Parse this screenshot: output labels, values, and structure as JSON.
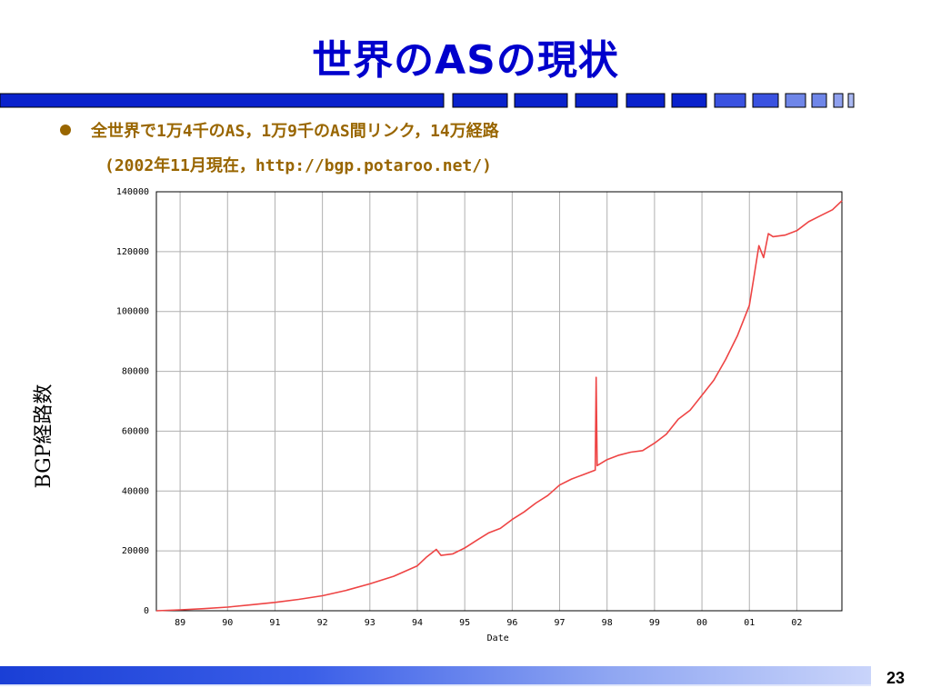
{
  "slide": {
    "title": "世界のASの現状",
    "bullet_line1": "全世界で1万4千のAS，1万9千のAS間リンク，14万経路",
    "bullet_line2": "(2002年11月現在，http://bgp.potaroo.net/)",
    "page_number": "23"
  },
  "colors": {
    "title": "#0000cc",
    "bullet_text": "#996600",
    "series": "#ee4444",
    "bar_dark": "#0a22cc",
    "bar_light": "#6f86e8"
  },
  "chart_data": {
    "type": "line",
    "xlabel": "Date",
    "ylabel": "BGP経路数",
    "x_ticks": [
      "89",
      "90",
      "91",
      "92",
      "93",
      "94",
      "95",
      "96",
      "97",
      "98",
      "99",
      "00",
      "01",
      "02"
    ],
    "y_ticks": [
      "0",
      "20000",
      "40000",
      "60000",
      "80000",
      "100000",
      "120000",
      "140000"
    ],
    "xlim": [
      1988.5,
      2002.95
    ],
    "ylim": [
      0,
      140000
    ],
    "grid": true,
    "series": [
      {
        "x": [
          1988.5,
          1989.0,
          1989.5,
          1990.0,
          1990.5,
          1991.0,
          1991.5,
          1992.0,
          1992.5,
          1993.0,
          1993.5,
          1994.0,
          1994.2,
          1994.4,
          1994.5,
          1994.75,
          1995.0,
          1995.25,
          1995.5,
          1995.75,
          1996.0,
          1996.25,
          1996.5,
          1996.75,
          1997.0,
          1997.25,
          1997.5,
          1997.75,
          1997.77,
          1997.79,
          1998.0,
          1998.25,
          1998.5,
          1998.75,
          1999.0,
          1999.25,
          1999.5,
          1999.75,
          2000.0,
          2000.25,
          2000.5,
          2000.75,
          2001.0,
          2001.1,
          2001.2,
          2001.3,
          2001.4,
          2001.5,
          2001.75,
          2002.0,
          2002.25,
          2002.5,
          2002.75,
          2002.95
        ],
        "y": [
          0,
          300,
          700,
          1200,
          2000,
          2800,
          3800,
          5000,
          6800,
          9000,
          11500,
          15000,
          18000,
          20500,
          18500,
          19000,
          21000,
          23500,
          26000,
          27500,
          30500,
          33000,
          36000,
          38500,
          42000,
          44000,
          45500,
          47000,
          78000,
          48500,
          50500,
          52000,
          53000,
          53500,
          56000,
          59000,
          64000,
          67000,
          72000,
          77000,
          84000,
          92000,
          102000,
          112000,
          122000,
          118000,
          126000,
          125000,
          125500,
          127000,
          130000,
          132000,
          134000,
          137000
        ]
      }
    ]
  }
}
